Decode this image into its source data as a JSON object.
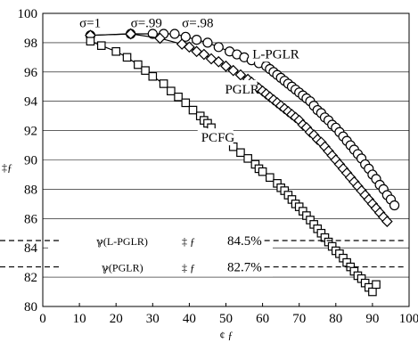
{
  "chart_data": {
    "type": "line",
    "xlim": [
      0,
      100
    ],
    "ylim": [
      80,
      100
    ],
    "x_ticks": [
      "0",
      "10",
      "20",
      "30",
      "40",
      "50",
      "60",
      "70",
      "80",
      "90",
      "100"
    ],
    "y_ticks": [
      "80",
      "82",
      "84",
      "86",
      "88",
      "90",
      "92",
      "94",
      "96",
      "98",
      "100"
    ],
    "ylabel": "‡ƒ",
    "xlabel": "¢ ƒ",
    "grid": "horizontal",
    "series": [
      {
        "name": "L-PGLR",
        "marker": "circle",
        "color": "#000000",
        "x": [
          13,
          24,
          30,
          33,
          36,
          39,
          42,
          45,
          48,
          51,
          53,
          55,
          57,
          59,
          61,
          62,
          63,
          64,
          65,
          66,
          67,
          68,
          69,
          70,
          71,
          72,
          73,
          74,
          75,
          76,
          77,
          78,
          79,
          80,
          81,
          82,
          83,
          84,
          85,
          86,
          87,
          88,
          89,
          90,
          91,
          92,
          93,
          94,
          95,
          96
        ],
        "y": [
          98.5,
          98.6,
          98.6,
          98.6,
          98.6,
          98.4,
          98.2,
          98.0,
          97.7,
          97.4,
          97.2,
          97.0,
          96.8,
          96.6,
          96.4,
          96.2,
          96.0,
          95.8,
          95.6,
          95.4,
          95.2,
          95.0,
          94.8,
          94.6,
          94.4,
          94.2,
          94.0,
          93.7,
          93.4,
          93.2,
          92.9,
          92.7,
          92.4,
          92.2,
          91.9,
          91.6,
          91.3,
          91.0,
          90.7,
          90.4,
          90.1,
          89.7,
          89.4,
          89.0,
          88.7,
          88.3,
          88.0,
          87.6,
          87.3,
          86.9
        ]
      },
      {
        "name": "PGLR",
        "marker": "diamond",
        "color": "#000000",
        "x": [
          13,
          24,
          32,
          38,
          40,
          42,
          44,
          46,
          48,
          50,
          52,
          54,
          56,
          57,
          58,
          59,
          60,
          61,
          62,
          63,
          64,
          65,
          66,
          67,
          68,
          69,
          70,
          71,
          72,
          73,
          74,
          75,
          76,
          77,
          78,
          79,
          80,
          81,
          82,
          83,
          84,
          85,
          86,
          87,
          88,
          89,
          90,
          91,
          92,
          93,
          94
        ],
        "y": [
          98.5,
          98.6,
          98.3,
          97.9,
          97.7,
          97.4,
          97.2,
          96.9,
          96.7,
          96.4,
          96.1,
          95.8,
          95.5,
          95.3,
          95.1,
          94.9,
          94.7,
          94.5,
          94.3,
          94.1,
          93.9,
          93.7,
          93.5,
          93.3,
          93.1,
          92.9,
          92.7,
          92.4,
          92.2,
          91.9,
          91.7,
          91.4,
          91.2,
          90.9,
          90.6,
          90.3,
          90.0,
          89.7,
          89.4,
          89.1,
          88.8,
          88.5,
          88.2,
          87.9,
          87.6,
          87.3,
          87.0,
          86.7,
          86.4,
          86.1,
          85.8
        ]
      },
      {
        "name": "PCFG",
        "marker": "square",
        "color": "#000000",
        "x": [
          13,
          16,
          20,
          23,
          26,
          28,
          30,
          33,
          35,
          37,
          39,
          41,
          43,
          44,
          45,
          46,
          48,
          50,
          52,
          54,
          56,
          58,
          59,
          60,
          62,
          64,
          65,
          66,
          67,
          68,
          69,
          70,
          71,
          72,
          73,
          74,
          75,
          76,
          77,
          78,
          79,
          80,
          81,
          82,
          83,
          84,
          85,
          86,
          87,
          88,
          89,
          90,
          91
        ],
        "y": [
          98.1,
          97.8,
          97.4,
          97.0,
          96.5,
          96.1,
          95.7,
          95.2,
          94.7,
          94.3,
          93.9,
          93.4,
          93.0,
          92.7,
          92.5,
          92.2,
          91.8,
          91.4,
          90.9,
          90.5,
          90.1,
          89.7,
          89.4,
          89.2,
          88.8,
          88.4,
          88.1,
          87.9,
          87.6,
          87.3,
          87.0,
          86.8,
          86.5,
          86.2,
          85.9,
          85.6,
          85.3,
          85.0,
          84.7,
          84.4,
          84.1,
          83.8,
          83.6,
          83.3,
          83.0,
          82.7,
          82.4,
          82.1,
          81.9,
          81.6,
          81.3,
          81.0,
          81.5
        ]
      }
    ],
    "annotations": {
      "sigma_labels": [
        {
          "text": "σ=1",
          "x": 10,
          "y": 99.3
        },
        {
          "text": "σ=.99",
          "x": 24,
          "y": 99.3
        },
        {
          "text": "σ=.98",
          "x": 38,
          "y": 99.3
        }
      ],
      "series_labels": [
        {
          "text": "L-PGLR",
          "x": 57,
          "y": 97.0
        },
        {
          "text": "PGLR",
          "x": 49.5,
          "y": 94.6
        },
        {
          "text": "PCFG",
          "x": 43,
          "y": 91.3
        }
      ],
      "ref_lines": [
        {
          "y": 84.5,
          "label": "ℽ(L-PGLR)",
          "sep": "‡ ƒ",
          "value": "84.5%"
        },
        {
          "y": 82.7,
          "label": "ℽ(PGLR)",
          "sep": "‡ ƒ",
          "value": "82.7%"
        }
      ]
    }
  }
}
